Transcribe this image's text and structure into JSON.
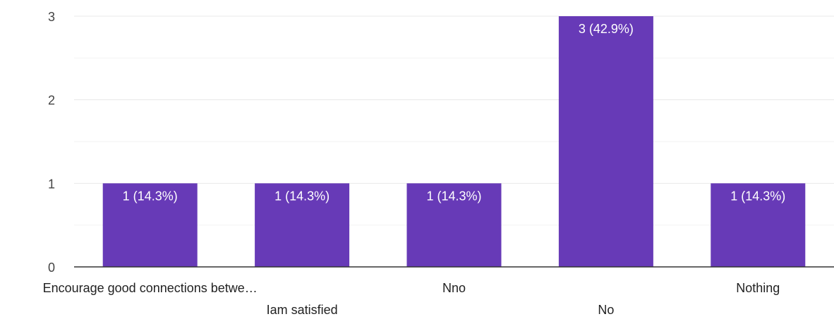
{
  "chart_data": {
    "type": "bar",
    "categories": [
      "Encourage good connections betwe…",
      "Iam satisfied",
      "Nno",
      "No",
      "Nothing"
    ],
    "values": [
      1,
      1,
      1,
      3,
      1
    ],
    "data_labels": [
      "1 (14.3%)",
      "1 (14.3%)",
      "1 (14.3%)",
      "3 (42.9%)",
      "1 (14.3%)"
    ],
    "yticks": [
      0,
      1,
      2,
      3
    ],
    "ylim": [
      0,
      3
    ],
    "minor_grid": true,
    "grid": true,
    "bar_color": "#673ab7",
    "grid_color": "#e8e8e8",
    "axis_color": "#333333"
  }
}
